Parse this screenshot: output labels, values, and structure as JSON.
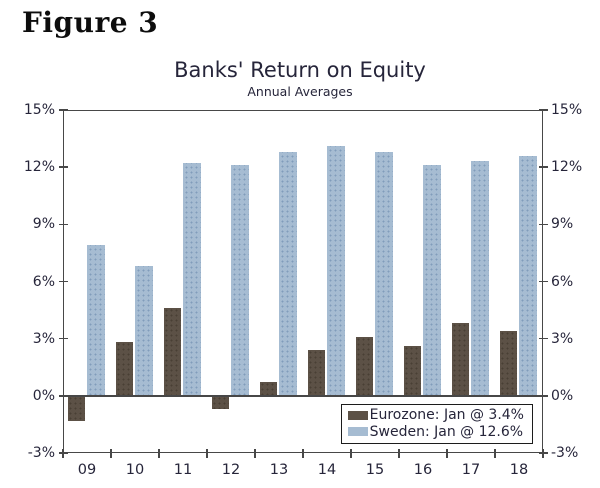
{
  "figure_label": "Figure 3",
  "chart_data": {
    "type": "bar",
    "title": "Banks' Return on Equity",
    "subtitle": "Annual Averages",
    "categories": [
      "09",
      "10",
      "11",
      "12",
      "13",
      "14",
      "15",
      "16",
      "17",
      "18"
    ],
    "series": [
      {
        "name": "Eurozone",
        "color": "#5c5146",
        "values": [
          -1.3,
          2.8,
          4.6,
          -0.7,
          0.7,
          2.4,
          3.1,
          2.6,
          3.8,
          3.4
        ]
      },
      {
        "name": "Sweden",
        "color": "#a6bcd2",
        "values": [
          7.9,
          6.8,
          12.2,
          12.1,
          12.8,
          13.1,
          12.8,
          12.1,
          12.3,
          12.6
        ]
      }
    ],
    "legend": [
      {
        "label": "Eurozone: Jan @ 3.4%",
        "color": "#5c5146"
      },
      {
        "label": "Sweden: Jan @ 12.6%",
        "color": "#a6bcd2"
      }
    ],
    "ylim": [
      -3,
      15
    ],
    "yticks": [
      15,
      12,
      9,
      6,
      3,
      0,
      -3
    ],
    "ytick_suffix": "%",
    "grid": false,
    "axis_color": "#474747",
    "legend_position": "bottom-right"
  }
}
